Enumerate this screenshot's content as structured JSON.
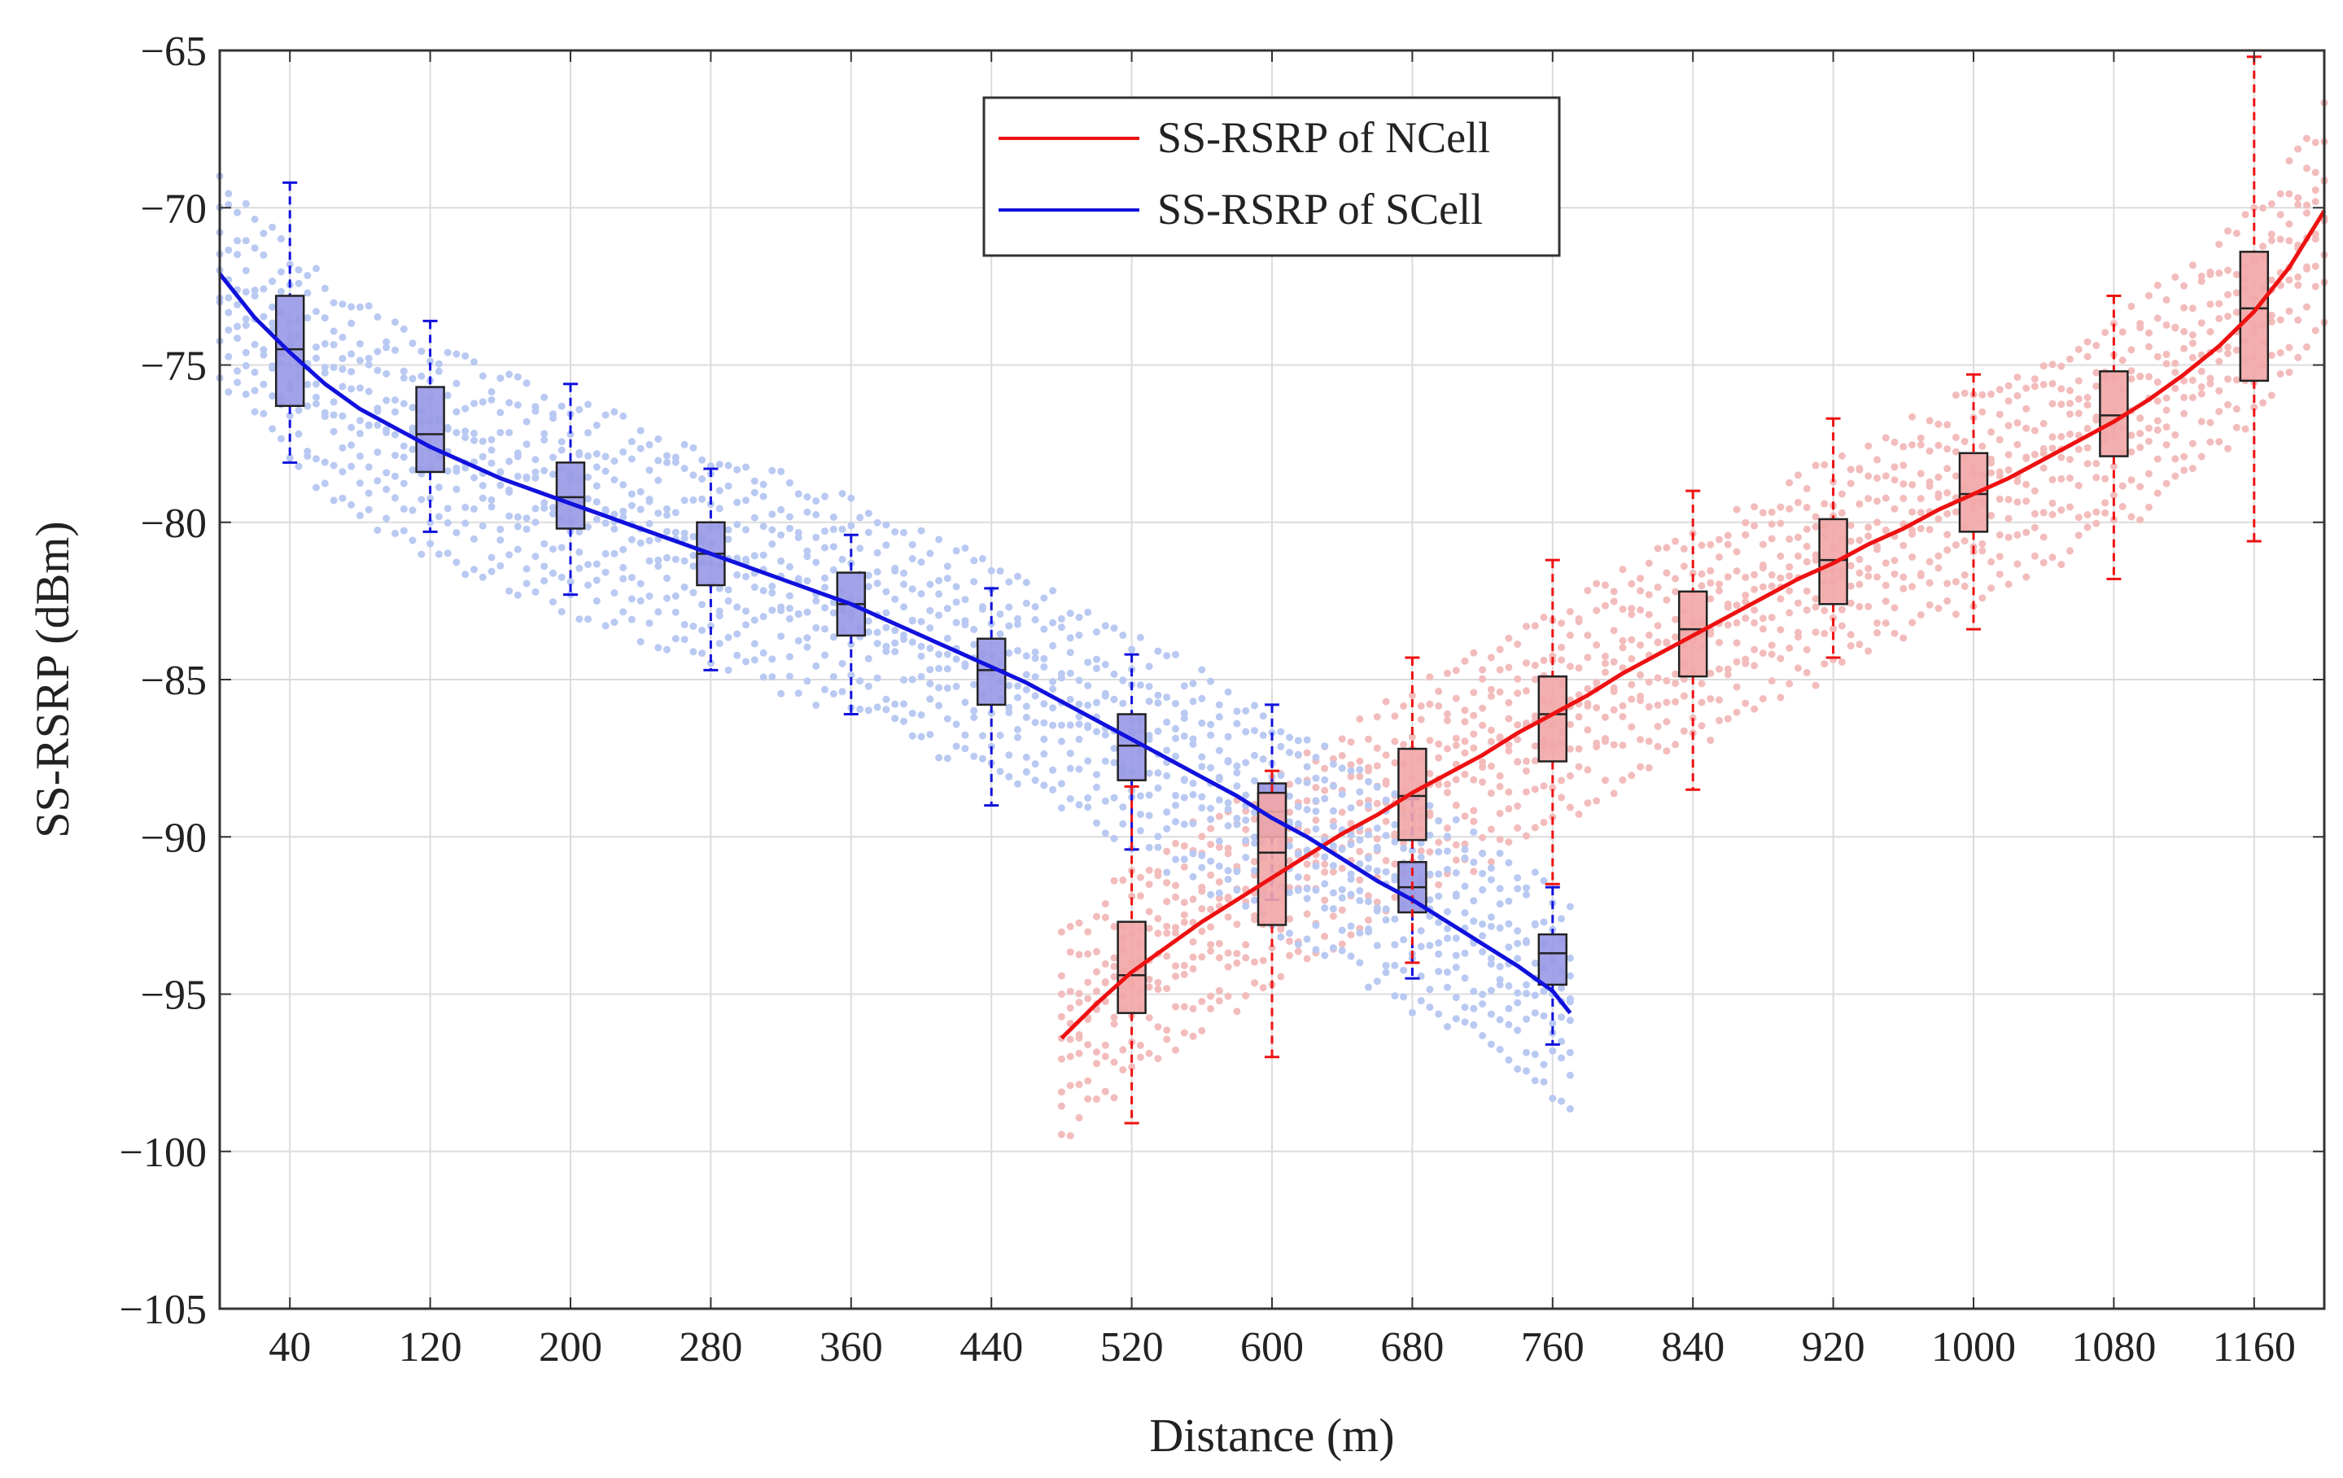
{
  "chart_data": {
    "type": "line",
    "title": "",
    "xlabel": "Distance (m)",
    "ylabel": "SS-RSRP (dBm)",
    "xlim": [
      0,
      1200
    ],
    "ylim": [
      -105,
      -65
    ],
    "xticks": [
      40,
      120,
      200,
      280,
      360,
      440,
      520,
      600,
      680,
      760,
      840,
      920,
      1000,
      1080,
      1160
    ],
    "xtick_labels": [
      "40",
      "120",
      "200",
      "280",
      "360",
      "440",
      "520",
      "600",
      "680",
      "760",
      "840",
      "920",
      "1000",
      "1080",
      "1160"
    ],
    "yticks": [
      -105,
      -100,
      -95,
      -90,
      -85,
      -80,
      -75,
      -70,
      -65
    ],
    "ytick_labels": [
      "−105",
      "−100",
      "−95",
      "−90",
      "−85",
      "−80",
      "−75",
      "−70",
      "−65"
    ],
    "grid": true,
    "legend_position": "top-center",
    "colors": {
      "ncell_line": "#ee1111",
      "scell_line": "#1111dd",
      "ncell_box": "#f2a6a6",
      "scell_box": "#9898e6",
      "ncell_scatter": "#f3bcbc",
      "scell_scatter": "#b9c9f2"
    },
    "series": [
      {
        "name": "SS-RSRP of NCell",
        "color": "#ee1111",
        "fit_x": [
          480,
          500,
          520,
          540,
          560,
          580,
          600,
          620,
          640,
          660,
          680,
          700,
          720,
          740,
          760,
          780,
          800,
          820,
          840,
          860,
          880,
          900,
          920,
          940,
          960,
          980,
          1000,
          1020,
          1040,
          1060,
          1080,
          1100,
          1120,
          1140,
          1160,
          1180,
          1200
        ],
        "fit_y": [
          -96.4,
          -95.3,
          -94.3,
          -93.5,
          -92.7,
          -92.0,
          -91.3,
          -90.6,
          -89.9,
          -89.3,
          -88.6,
          -88.0,
          -87.4,
          -86.7,
          -86.1,
          -85.5,
          -84.8,
          -84.2,
          -83.6,
          -83.0,
          -82.4,
          -81.8,
          -81.3,
          -80.7,
          -80.2,
          -79.6,
          -79.1,
          -78.6,
          -78.0,
          -77.4,
          -76.8,
          -76.1,
          -75.3,
          -74.4,
          -73.3,
          -71.9,
          -70.1
        ],
        "box_x": [
          520,
          600,
          680,
          760,
          840,
          920,
          1000,
          1080,
          1160
        ],
        "box_q1": [
          -95.6,
          -92.8,
          -90.1,
          -87.6,
          -84.9,
          -82.6,
          -80.3,
          -77.9,
          -75.5
        ],
        "box_q3": [
          -92.7,
          -88.6,
          -87.2,
          -84.9,
          -82.2,
          -79.9,
          -77.8,
          -75.2,
          -71.4
        ],
        "box_median": [
          -94.4,
          -90.5,
          -88.7,
          -86.1,
          -83.4,
          -81.2,
          -79.1,
          -76.6,
          -73.2
        ],
        "box_whisker_low": [
          -99.1,
          -97.0,
          -94.0,
          -91.5,
          -88.5,
          -84.3,
          -83.4,
          -81.8,
          -80.6
        ],
        "box_whisker_high": [
          -88.4,
          -87.9,
          -84.3,
          -81.2,
          -79.0,
          -76.7,
          -75.3,
          -72.8,
          -65.2
        ]
      },
      {
        "name": "SS-RSRP of SCell",
        "color": "#1111dd",
        "fit_x": [
          0,
          20,
          40,
          60,
          80,
          100,
          120,
          140,
          160,
          180,
          200,
          220,
          240,
          260,
          280,
          300,
          320,
          340,
          360,
          380,
          400,
          420,
          440,
          460,
          480,
          500,
          520,
          540,
          560,
          580,
          600,
          620,
          640,
          660,
          680,
          700,
          720,
          740,
          760,
          770
        ],
        "fit_y": [
          -72.1,
          -73.5,
          -74.6,
          -75.6,
          -76.4,
          -77.0,
          -77.6,
          -78.1,
          -78.6,
          -79.0,
          -79.4,
          -79.8,
          -80.2,
          -80.6,
          -81.0,
          -81.4,
          -81.8,
          -82.2,
          -82.6,
          -83.1,
          -83.6,
          -84.1,
          -84.6,
          -85.1,
          -85.7,
          -86.3,
          -86.9,
          -87.5,
          -88.1,
          -88.7,
          -89.4,
          -90.0,
          -90.7,
          -91.4,
          -92.0,
          -92.7,
          -93.4,
          -94.1,
          -94.9,
          -95.6
        ],
        "box_x": [
          40,
          120,
          200,
          280,
          360,
          440,
          520,
          600,
          680,
          760
        ],
        "box_q1": [
          -76.3,
          -78.4,
          -80.2,
          -82.0,
          -83.6,
          -85.8,
          -88.2,
          -90.0,
          -92.4,
          -94.7
        ],
        "box_q3": [
          -72.8,
          -75.7,
          -78.1,
          -80.0,
          -81.6,
          -83.7,
          -86.1,
          -88.3,
          -90.8,
          -93.1
        ],
        "box_median": [
          -74.5,
          -77.2,
          -79.2,
          -81.0,
          -82.6,
          -84.7,
          -87.1,
          -89.2,
          -91.6,
          -93.7
        ],
        "box_whisker_low": [
          -78.1,
          -80.3,
          -82.3,
          -84.7,
          -86.1,
          -89.0,
          -90.4,
          -92.0,
          -94.5,
          -96.6
        ],
        "box_whisker_high": [
          -69.2,
          -73.6,
          -75.6,
          -78.3,
          -80.4,
          -82.1,
          -84.2,
          -85.8,
          -88.8,
          -91.6
        ]
      }
    ]
  }
}
